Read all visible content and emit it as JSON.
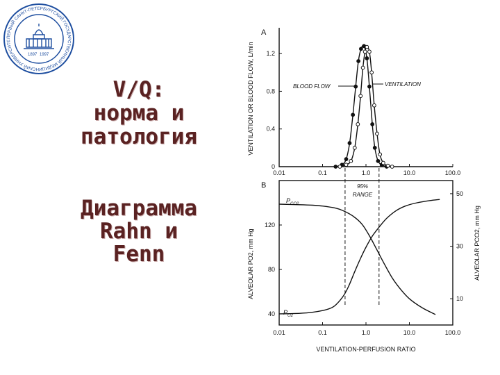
{
  "slide": {
    "title_lines": [
      "V/Q:",
      "норма и",
      "патология"
    ],
    "subtitle_lines": [
      "Диаграмма",
      "Rahn и",
      "Fenn"
    ],
    "title_color": "#5a2222"
  },
  "logo": {
    "ring_text": "ПЕРВЫЙ САНКТ-ПЕТЕРБУРГСКИЙ ГОСУДАРСТВЕННЫЙ МЕДИЦИНСКИЙ УНИВЕРСИТЕТ",
    "years": [
      "1897",
      "1997"
    ],
    "color": "#1f4fa0"
  },
  "chart_data": [
    {
      "type": "line",
      "panel_label": "A",
      "x_scale": "log",
      "xlim": [
        0.01,
        100
      ],
      "ylim": [
        0,
        1.4
      ],
      "xticks": [
        "0.01",
        "0.1",
        "1.0",
        "10.0",
        "100.0"
      ],
      "xtick_values": [
        0.01,
        0.1,
        1,
        10,
        100
      ],
      "yticks": [
        "0",
        "0.4",
        "0.8",
        "1.2"
      ],
      "ytick_values": [
        0,
        0.4,
        0.8,
        1.2
      ],
      "ylabel": "VENTILATION OR BLOOD FLOW, L/min",
      "annotations": [
        "BLOOD FLOW",
        "VENTILATION",
        "95%",
        "RANGE"
      ],
      "series": [
        {
          "name": "BLOOD FLOW",
          "marker": "filled",
          "x": [
            0.2,
            0.28,
            0.35,
            0.42,
            0.5,
            0.58,
            0.67,
            0.77,
            0.9,
            1.05,
            1.2,
            1.4,
            1.6,
            1.9,
            2.3,
            3.0
          ],
          "y": [
            0.0,
            0.02,
            0.08,
            0.25,
            0.55,
            0.85,
            1.12,
            1.25,
            1.28,
            1.15,
            0.85,
            0.45,
            0.2,
            0.06,
            0.02,
            0.0
          ]
        },
        {
          "name": "VENTILATION",
          "marker": "open",
          "x": [
            0.25,
            0.35,
            0.45,
            0.55,
            0.65,
            0.75,
            0.85,
            0.95,
            1.05,
            1.2,
            1.35,
            1.55,
            1.8,
            2.1,
            2.5,
            3.2,
            4.0
          ],
          "y": [
            0.0,
            0.02,
            0.06,
            0.2,
            0.45,
            0.75,
            1.05,
            1.22,
            1.27,
            1.22,
            1.0,
            0.65,
            0.35,
            0.13,
            0.04,
            0.01,
            0.0
          ]
        }
      ]
    },
    {
      "type": "line",
      "panel_label": "B",
      "x_scale": "log",
      "xlim": [
        0.01,
        100
      ],
      "ylim_left": [
        30,
        160
      ],
      "ylim_right": [
        0,
        55
      ],
      "xticks": [
        "0.01",
        "0.1",
        "1.0",
        "10.0",
        "100.0"
      ],
      "xtick_values": [
        0.01,
        0.1,
        1,
        10,
        100
      ],
      "yticks_left": [
        "40",
        "80",
        "120"
      ],
      "ytick_values_left": [
        40,
        80,
        120
      ],
      "yticks_right": [
        "10",
        "30",
        "50"
      ],
      "ytick_values_right": [
        10,
        30,
        50
      ],
      "ylabel_left": "ALVEOLAR PO2, mm Hg",
      "ylabel_right": "ALVEOLAR PCO2, mm Hg",
      "xlabel": "VENTILATION-PERFUSION RATIO",
      "vlines": [
        0.33,
        2.0
      ],
      "series": [
        {
          "name": "PO2",
          "axis": "left",
          "x": [
            0.01,
            0.03,
            0.06,
            0.1,
            0.15,
            0.2,
            0.3,
            0.4,
            0.55,
            0.75,
            1.0,
            1.4,
            2.0,
            3.0,
            5.0,
            8.0,
            15.0,
            30.0,
            50.0
          ],
          "y": [
            40,
            40.5,
            41.5,
            43,
            45,
            48,
            56,
            65,
            78,
            90,
            100,
            110,
            118,
            126,
            133,
            137,
            140,
            142,
            143
          ]
        },
        {
          "name": "PCO2",
          "axis": "right",
          "x": [
            0.01,
            0.03,
            0.06,
            0.1,
            0.2,
            0.3,
            0.5,
            0.8,
            1.2,
            1.8,
            2.5,
            4.0,
            6.0,
            10.0,
            20.0,
            40.0
          ],
          "y": [
            46,
            45.8,
            45.6,
            45.3,
            44.5,
            43.5,
            41.5,
            38.5,
            34.0,
            28.5,
            24.0,
            18.0,
            14.0,
            10.0,
            6.5,
            4.0
          ]
        }
      ]
    }
  ]
}
